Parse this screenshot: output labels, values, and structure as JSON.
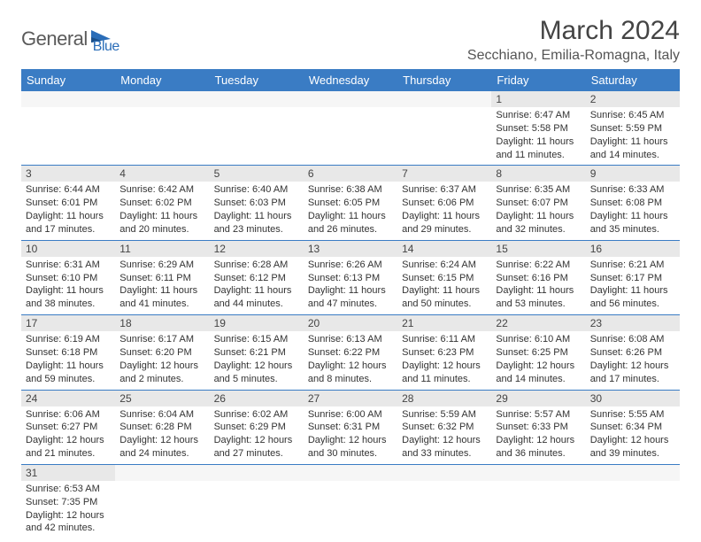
{
  "logo": {
    "text1": "General",
    "text2": "Blue"
  },
  "title": "March 2024",
  "location": "Secchiano, Emilia-Romagna, Italy",
  "colors": {
    "header_bg": "#3a7cc4",
    "header_text": "#ffffff",
    "daynum_bg": "#e8e8e8",
    "row_border": "#3a7cc4",
    "logo_gray": "#5a5a5a",
    "logo_blue": "#2a6db8"
  },
  "weekdays": [
    "Sunday",
    "Monday",
    "Tuesday",
    "Wednesday",
    "Thursday",
    "Friday",
    "Saturday"
  ],
  "weeks": [
    [
      {
        "n": "",
        "sr": "",
        "ss": "",
        "dl": ""
      },
      {
        "n": "",
        "sr": "",
        "ss": "",
        "dl": ""
      },
      {
        "n": "",
        "sr": "",
        "ss": "",
        "dl": ""
      },
      {
        "n": "",
        "sr": "",
        "ss": "",
        "dl": ""
      },
      {
        "n": "",
        "sr": "",
        "ss": "",
        "dl": ""
      },
      {
        "n": "1",
        "sr": "Sunrise: 6:47 AM",
        "ss": "Sunset: 5:58 PM",
        "dl": "Daylight: 11 hours and 11 minutes."
      },
      {
        "n": "2",
        "sr": "Sunrise: 6:45 AM",
        "ss": "Sunset: 5:59 PM",
        "dl": "Daylight: 11 hours and 14 minutes."
      }
    ],
    [
      {
        "n": "3",
        "sr": "Sunrise: 6:44 AM",
        "ss": "Sunset: 6:01 PM",
        "dl": "Daylight: 11 hours and 17 minutes."
      },
      {
        "n": "4",
        "sr": "Sunrise: 6:42 AM",
        "ss": "Sunset: 6:02 PM",
        "dl": "Daylight: 11 hours and 20 minutes."
      },
      {
        "n": "5",
        "sr": "Sunrise: 6:40 AM",
        "ss": "Sunset: 6:03 PM",
        "dl": "Daylight: 11 hours and 23 minutes."
      },
      {
        "n": "6",
        "sr": "Sunrise: 6:38 AM",
        "ss": "Sunset: 6:05 PM",
        "dl": "Daylight: 11 hours and 26 minutes."
      },
      {
        "n": "7",
        "sr": "Sunrise: 6:37 AM",
        "ss": "Sunset: 6:06 PM",
        "dl": "Daylight: 11 hours and 29 minutes."
      },
      {
        "n": "8",
        "sr": "Sunrise: 6:35 AM",
        "ss": "Sunset: 6:07 PM",
        "dl": "Daylight: 11 hours and 32 minutes."
      },
      {
        "n": "9",
        "sr": "Sunrise: 6:33 AM",
        "ss": "Sunset: 6:08 PM",
        "dl": "Daylight: 11 hours and 35 minutes."
      }
    ],
    [
      {
        "n": "10",
        "sr": "Sunrise: 6:31 AM",
        "ss": "Sunset: 6:10 PM",
        "dl": "Daylight: 11 hours and 38 minutes."
      },
      {
        "n": "11",
        "sr": "Sunrise: 6:29 AM",
        "ss": "Sunset: 6:11 PM",
        "dl": "Daylight: 11 hours and 41 minutes."
      },
      {
        "n": "12",
        "sr": "Sunrise: 6:28 AM",
        "ss": "Sunset: 6:12 PM",
        "dl": "Daylight: 11 hours and 44 minutes."
      },
      {
        "n": "13",
        "sr": "Sunrise: 6:26 AM",
        "ss": "Sunset: 6:13 PM",
        "dl": "Daylight: 11 hours and 47 minutes."
      },
      {
        "n": "14",
        "sr": "Sunrise: 6:24 AM",
        "ss": "Sunset: 6:15 PM",
        "dl": "Daylight: 11 hours and 50 minutes."
      },
      {
        "n": "15",
        "sr": "Sunrise: 6:22 AM",
        "ss": "Sunset: 6:16 PM",
        "dl": "Daylight: 11 hours and 53 minutes."
      },
      {
        "n": "16",
        "sr": "Sunrise: 6:21 AM",
        "ss": "Sunset: 6:17 PM",
        "dl": "Daylight: 11 hours and 56 minutes."
      }
    ],
    [
      {
        "n": "17",
        "sr": "Sunrise: 6:19 AM",
        "ss": "Sunset: 6:18 PM",
        "dl": "Daylight: 11 hours and 59 minutes."
      },
      {
        "n": "18",
        "sr": "Sunrise: 6:17 AM",
        "ss": "Sunset: 6:20 PM",
        "dl": "Daylight: 12 hours and 2 minutes."
      },
      {
        "n": "19",
        "sr": "Sunrise: 6:15 AM",
        "ss": "Sunset: 6:21 PM",
        "dl": "Daylight: 12 hours and 5 minutes."
      },
      {
        "n": "20",
        "sr": "Sunrise: 6:13 AM",
        "ss": "Sunset: 6:22 PM",
        "dl": "Daylight: 12 hours and 8 minutes."
      },
      {
        "n": "21",
        "sr": "Sunrise: 6:11 AM",
        "ss": "Sunset: 6:23 PM",
        "dl": "Daylight: 12 hours and 11 minutes."
      },
      {
        "n": "22",
        "sr": "Sunrise: 6:10 AM",
        "ss": "Sunset: 6:25 PM",
        "dl": "Daylight: 12 hours and 14 minutes."
      },
      {
        "n": "23",
        "sr": "Sunrise: 6:08 AM",
        "ss": "Sunset: 6:26 PM",
        "dl": "Daylight: 12 hours and 17 minutes."
      }
    ],
    [
      {
        "n": "24",
        "sr": "Sunrise: 6:06 AM",
        "ss": "Sunset: 6:27 PM",
        "dl": "Daylight: 12 hours and 21 minutes."
      },
      {
        "n": "25",
        "sr": "Sunrise: 6:04 AM",
        "ss": "Sunset: 6:28 PM",
        "dl": "Daylight: 12 hours and 24 minutes."
      },
      {
        "n": "26",
        "sr": "Sunrise: 6:02 AM",
        "ss": "Sunset: 6:29 PM",
        "dl": "Daylight: 12 hours and 27 minutes."
      },
      {
        "n": "27",
        "sr": "Sunrise: 6:00 AM",
        "ss": "Sunset: 6:31 PM",
        "dl": "Daylight: 12 hours and 30 minutes."
      },
      {
        "n": "28",
        "sr": "Sunrise: 5:59 AM",
        "ss": "Sunset: 6:32 PM",
        "dl": "Daylight: 12 hours and 33 minutes."
      },
      {
        "n": "29",
        "sr": "Sunrise: 5:57 AM",
        "ss": "Sunset: 6:33 PM",
        "dl": "Daylight: 12 hours and 36 minutes."
      },
      {
        "n": "30",
        "sr": "Sunrise: 5:55 AM",
        "ss": "Sunset: 6:34 PM",
        "dl": "Daylight: 12 hours and 39 minutes."
      }
    ],
    [
      {
        "n": "31",
        "sr": "Sunrise: 6:53 AM",
        "ss": "Sunset: 7:35 PM",
        "dl": "Daylight: 12 hours and 42 minutes."
      },
      {
        "n": "",
        "sr": "",
        "ss": "",
        "dl": ""
      },
      {
        "n": "",
        "sr": "",
        "ss": "",
        "dl": ""
      },
      {
        "n": "",
        "sr": "",
        "ss": "",
        "dl": ""
      },
      {
        "n": "",
        "sr": "",
        "ss": "",
        "dl": ""
      },
      {
        "n": "",
        "sr": "",
        "ss": "",
        "dl": ""
      },
      {
        "n": "",
        "sr": "",
        "ss": "",
        "dl": ""
      }
    ]
  ]
}
